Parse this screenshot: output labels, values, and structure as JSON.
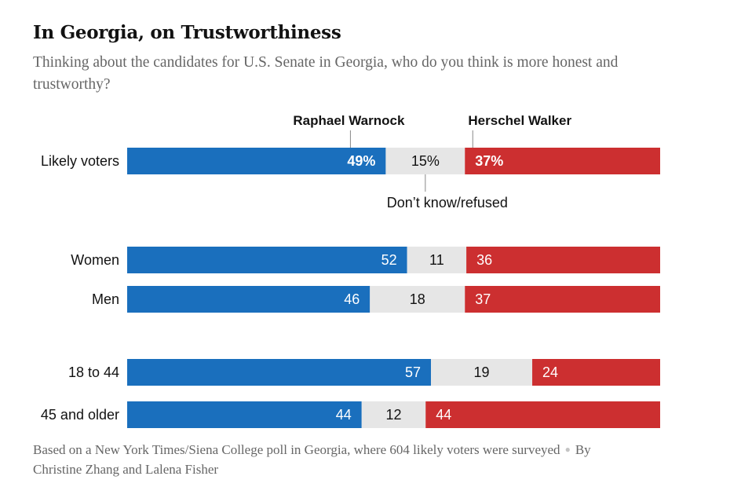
{
  "title": "In Georgia, on Trustworthiness",
  "subtitle": "Thinking about the candidates for U.S. Senate in Georgia, who do you think is more honest and trustworthy?",
  "footer": {
    "source": "Based on a New York Times/Siena College poll in Georgia, where 604 likely voters were surveyed",
    "byline": "By Christine Zhang and Lalena Fisher"
  },
  "colors": {
    "warnock": "#1a6fbd",
    "neither": "#e6e6e6",
    "walker": "#cc2f30"
  },
  "chart_data": {
    "type": "bar",
    "stacked": true,
    "orientation": "horizontal",
    "title": "In Georgia, on Trustworthiness",
    "series_labels": {
      "warnock": "Raphael Warnock",
      "walker": "Herschel Walker",
      "neither": "Don’t know/refused"
    },
    "groups": [
      {
        "rows": [
          {
            "label": "Likely voters",
            "warnock": 49,
            "neither": 15,
            "walker": 37,
            "display": [
              "49%",
              "15%",
              "37%"
            ]
          }
        ]
      },
      {
        "rows": [
          {
            "label": "Women",
            "warnock": 52,
            "neither": 11,
            "walker": 36,
            "display": [
              "52",
              "11",
              "36"
            ]
          },
          {
            "label": "Men",
            "warnock": 46,
            "neither": 18,
            "walker": 37,
            "display": [
              "46",
              "18",
              "37"
            ]
          }
        ]
      },
      {
        "rows": [
          {
            "label": "18 to 44",
            "warnock": 57,
            "neither": 19,
            "walker": 24,
            "display": [
              "57",
              "19",
              "24"
            ]
          },
          {
            "label": "45 and older",
            "warnock": 44,
            "neither": 12,
            "walker": 44,
            "display": [
              "44",
              "12",
              "44"
            ]
          }
        ]
      }
    ],
    "xlim": [
      0,
      100
    ]
  }
}
